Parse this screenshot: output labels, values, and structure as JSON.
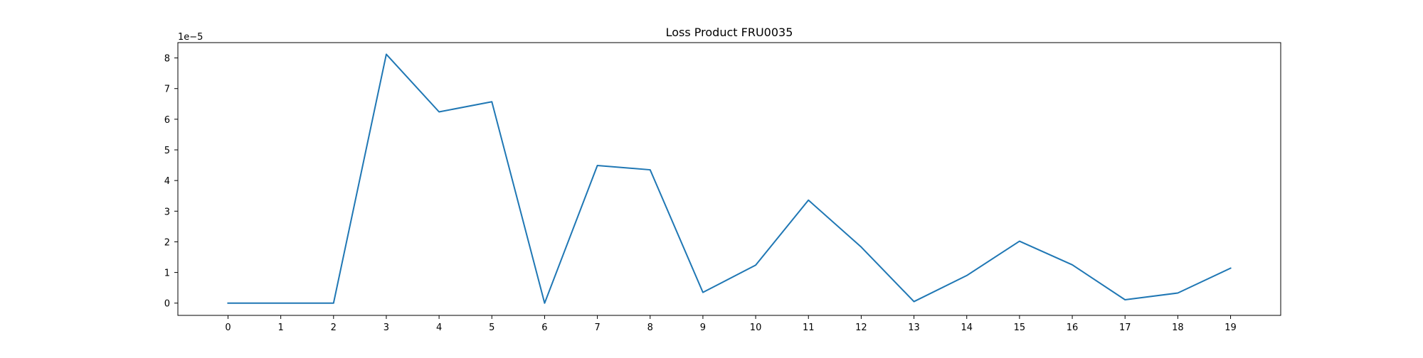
{
  "chart_data": {
    "type": "line",
    "title": "Loss Product FRU0035",
    "xlabel": "",
    "ylabel": "",
    "offset_label": "1e−5",
    "x": [
      0,
      1,
      2,
      3,
      4,
      5,
      6,
      7,
      8,
      9,
      10,
      11,
      12,
      13,
      14,
      15,
      16,
      17,
      18,
      19
    ],
    "x_tick_labels": [
      "0",
      "1",
      "2",
      "3",
      "4",
      "5",
      "6",
      "7",
      "8",
      "9",
      "10",
      "11",
      "12",
      "13",
      "14",
      "15",
      "16",
      "17",
      "18",
      "19"
    ],
    "xlim": [
      -0.95,
      19.95
    ],
    "ylim": [
      -4e-06,
      8.5e-05
    ],
    "y_ticks": [
      0,
      1e-05,
      2e-05,
      3e-05,
      4e-05,
      5e-05,
      6e-05,
      7e-05,
      8e-05
    ],
    "y_tick_labels": [
      "0",
      "1",
      "2",
      "3",
      "4",
      "5",
      "6",
      "7",
      "8"
    ],
    "series": [
      {
        "color": "#1f77b4",
        "values": [
          0,
          0,
          0,
          8.12e-05,
          6.24e-05,
          6.57e-05,
          0,
          4.49e-05,
          4.35e-05,
          3.5e-06,
          1.24e-05,
          3.36e-05,
          1.83e-05,
          5e-07,
          9e-06,
          2.02e-05,
          1.25e-05,
          1.1e-06,
          3.3e-06,
          1.14e-05
        ]
      }
    ],
    "grid": false,
    "legend": "none"
  }
}
